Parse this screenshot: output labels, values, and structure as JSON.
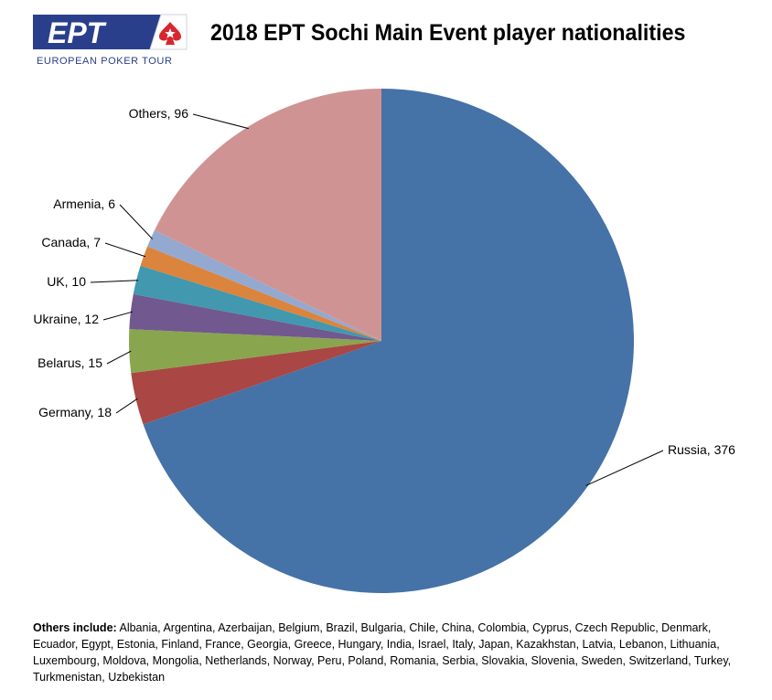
{
  "logo": {
    "wordmark": "EPT",
    "tagline": "EUROPEAN POKER TOUR"
  },
  "colors": {
    "logo_navy": "#2a3f8c",
    "logo_red": "#d7262e"
  },
  "chart_data": {
    "type": "pie",
    "title": "2018 EPT Sochi Main Event player nationalities",
    "slices": [
      {
        "label": "Russia",
        "value": 376,
        "color": "#4572a7"
      },
      {
        "label": "Germany",
        "value": 18,
        "color": "#aa4643"
      },
      {
        "label": "Belarus",
        "value": 15,
        "color": "#89a54e"
      },
      {
        "label": "Ukraine",
        "value": 12,
        "color": "#71588f"
      },
      {
        "label": "UK",
        "value": 10,
        "color": "#4198af"
      },
      {
        "label": "Canada",
        "value": 7,
        "color": "#db843d"
      },
      {
        "label": "Armenia",
        "value": 6,
        "color": "#93a9cf"
      },
      {
        "label": "Others",
        "value": 96,
        "color": "#d09393"
      }
    ]
  },
  "footnote": {
    "label": "Others include:",
    "text": "Albania, Argentina, Azerbaijan, Belgium, Brazil, Bulgaria, Chile, China, Colombia, Cyprus, Czech Republic, Denmark, Ecuador, Egypt, Estonia, Finland, France, Georgia, Greece, Hungary, India, Israel, Italy, Japan, Kazakhstan, Latvia, Lebanon, Lithuania, Luxembourg, Moldova, Mongolia, Netherlands, Norway, Peru, Poland, Romania, Serbia, Slovakia, Slovenia, Sweden, Switzerland, Turkey, Turkmenistan, Uzbekistan"
  }
}
